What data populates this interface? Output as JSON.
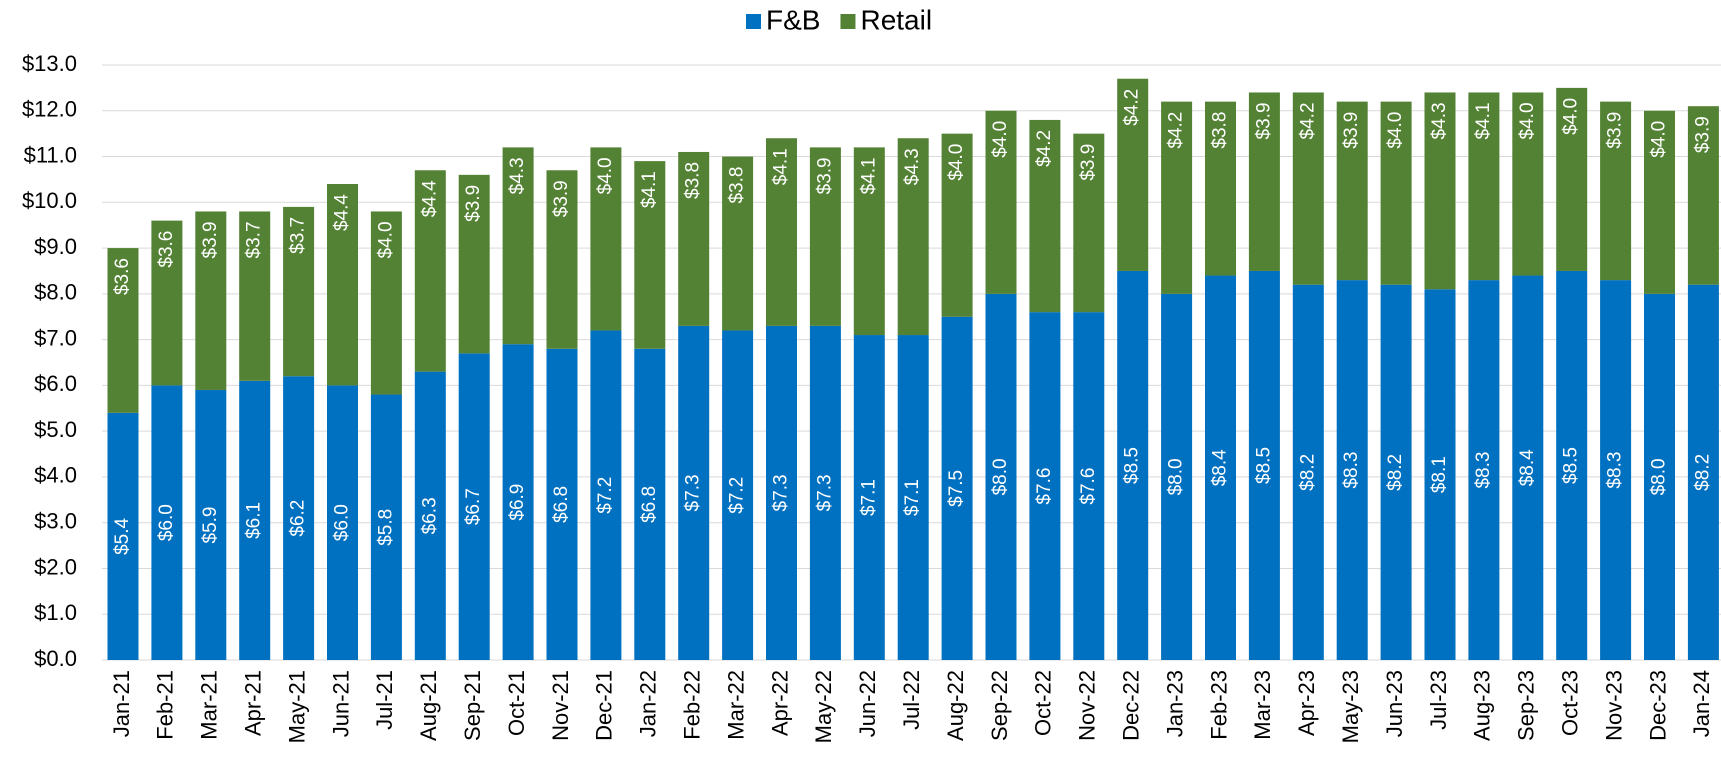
{
  "chart_data": {
    "type": "stacked_bar",
    "categories": [
      "Jan-21",
      "Feb-21",
      "Mar-21",
      "Apr-21",
      "May-21",
      "Jun-21",
      "Jul-21",
      "Aug-21",
      "Sep-21",
      "Oct-21",
      "Nov-21",
      "Dec-21",
      "Jan-22",
      "Feb-22",
      "Mar-22",
      "Apr-22",
      "May-22",
      "Jun-22",
      "Jul-22",
      "Aug-22",
      "Sep-22",
      "Oct-22",
      "Nov-22",
      "Dec-22",
      "Jan-23",
      "Feb-23",
      "Mar-23",
      "Apr-23",
      "May-23",
      "Jun-23",
      "Jul-23",
      "Aug-23",
      "Sep-23",
      "Oct-23",
      "Nov-23",
      "Dec-23",
      "Jan-24"
    ],
    "series": [
      {
        "name": "F&B",
        "color": "#0070c0",
        "values": [
          5.4,
          6.0,
          5.9,
          6.1,
          6.2,
          6.0,
          5.8,
          6.3,
          6.7,
          6.9,
          6.8,
          7.2,
          6.8,
          7.3,
          7.2,
          7.3,
          7.3,
          7.1,
          7.1,
          7.5,
          8.0,
          7.6,
          7.6,
          8.5,
          8.0,
          8.4,
          8.5,
          8.2,
          8.3,
          8.2,
          8.1,
          8.3,
          8.4,
          8.5,
          8.3,
          8.0,
          8.2
        ],
        "value_labels": [
          "$5.4",
          "$6.0",
          "$5.9",
          "$6.1",
          "$6.2",
          "$6.0",
          "$5.8",
          "$6.3",
          "$6.7",
          "$6.9",
          "$6.8",
          "$7.2",
          "$6.8",
          "$7.3",
          "$7.2",
          "$7.3",
          "$7.3",
          "$7.1",
          "$7.1",
          "$7.5",
          "$8.0",
          "$7.6",
          "$7.6",
          "$8.5",
          "$8.0",
          "$8.4",
          "$8.5",
          "$8.2",
          "$8.3",
          "$8.2",
          "$8.1",
          "$8.3",
          "$8.4",
          "$8.5",
          "$8.3",
          "$8.0",
          "$8.2"
        ]
      },
      {
        "name": "Retail",
        "color": "#548235",
        "values": [
          3.6,
          3.6,
          3.9,
          3.7,
          3.7,
          4.4,
          4.0,
          4.4,
          3.9,
          4.3,
          3.9,
          4.0,
          4.1,
          3.8,
          3.8,
          4.1,
          3.9,
          4.1,
          4.3,
          4.0,
          4.0,
          4.2,
          3.9,
          4.2,
          4.2,
          3.8,
          3.9,
          4.2,
          3.9,
          4.0,
          4.3,
          4.1,
          4.0,
          4.0,
          3.9,
          4.0,
          3.9
        ],
        "value_labels": [
          "$3.6",
          "$3.6",
          "$3.9",
          "$3.7",
          "$3.7",
          "$4.4",
          "$4.0",
          "$4.4",
          "$3.9",
          "$4.3",
          "$3.9",
          "$4.0",
          "$4.1",
          "$3.8",
          "$3.8",
          "$4.1",
          "$3.9",
          "$4.1",
          "$4.3",
          "$4.0",
          "$4.0",
          "$4.2",
          "$3.9",
          "$4.2",
          "$4.2",
          "$3.8",
          "$3.9",
          "$4.2",
          "$3.9",
          "$4.0",
          "$4.3",
          "$4.1",
          "$4.0",
          "$4.0",
          "$3.9",
          "$4.0",
          "$3.9"
        ]
      }
    ],
    "ylim": [
      0,
      13
    ],
    "yticks": [
      {
        "value": 0,
        "label": "$0.0"
      },
      {
        "value": 1,
        "label": "$1.0"
      },
      {
        "value": 2,
        "label": "$2.0"
      },
      {
        "value": 3,
        "label": "$3.0"
      },
      {
        "value": 4,
        "label": "$4.0"
      },
      {
        "value": 5,
        "label": "$5.0"
      },
      {
        "value": 6,
        "label": "$6.0"
      },
      {
        "value": 7,
        "label": "$7.0"
      },
      {
        "value": 8,
        "label": "$8.0"
      },
      {
        "value": 9,
        "label": "$9.0"
      },
      {
        "value": 10,
        "label": "$10.0"
      },
      {
        "value": 11,
        "label": "$11.0"
      },
      {
        "value": 12,
        "label": "$12.0"
      },
      {
        "value": 13,
        "label": "$13.0"
      }
    ],
    "grid": true,
    "legend": "top"
  }
}
